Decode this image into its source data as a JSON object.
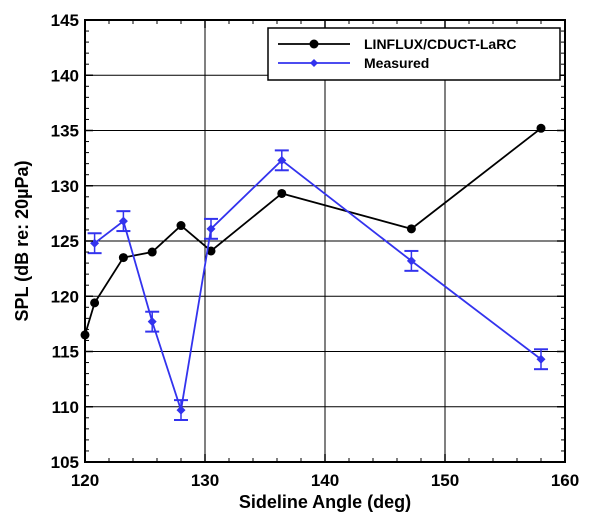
{
  "chart_data": {
    "type": "line",
    "title": "",
    "xlabel": "Sideline Angle (deg)",
    "ylabel": "SPL (dB re: 20µPa)",
    "xlim": [
      120,
      160
    ],
    "ylim": [
      105,
      145
    ],
    "xticks": [
      120,
      130,
      140,
      150,
      160
    ],
    "yticks": [
      105,
      110,
      115,
      120,
      125,
      130,
      135,
      140,
      145
    ],
    "grid": true,
    "legend_position": "top-right",
    "series": [
      {
        "name": "LINFLUX/CDUCT-LaRC",
        "color": "#000000",
        "marker": "circle",
        "x": [
          120,
          120.8,
          123.2,
          125.6,
          128,
          130.5,
          136.4,
          147.2,
          158
        ],
        "y": [
          116.5,
          119.4,
          123.5,
          124.0,
          126.4,
          124.1,
          129.3,
          126.1,
          135.2
        ]
      },
      {
        "name": "Measured",
        "color": "#3333ee",
        "marker": "diamond",
        "errorbars": true,
        "x": [
          120.8,
          123.2,
          125.6,
          128,
          130.5,
          136.4,
          147.2,
          158
        ],
        "y": [
          124.8,
          126.8,
          117.7,
          109.7,
          126.1,
          132.3,
          123.2,
          114.3
        ],
        "err": [
          0.9,
          0.9,
          0.9,
          0.9,
          0.9,
          0.9,
          0.9,
          0.9
        ]
      }
    ]
  }
}
